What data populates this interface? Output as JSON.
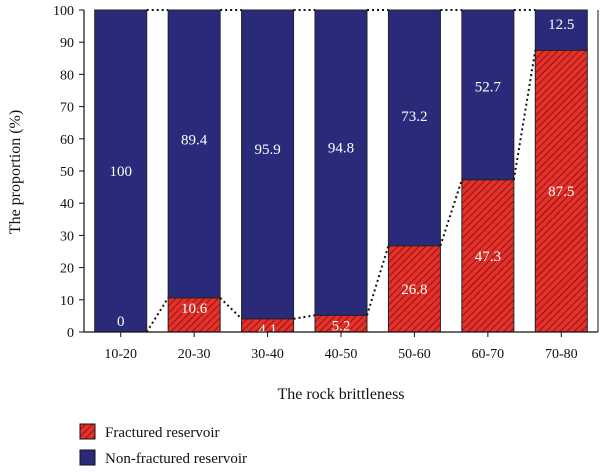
{
  "chart_data": {
    "type": "bar",
    "stacked": true,
    "categories": [
      "10-20",
      "20-30",
      "30-40",
      "40-50",
      "50-60",
      "60-70",
      "70-80"
    ],
    "series": [
      {
        "name": "Fractured reservoir",
        "values": [
          0,
          10.6,
          4.1,
          5.2,
          26.8,
          47.3,
          87.5
        ],
        "color": "#e8302a",
        "pattern": "hatch"
      },
      {
        "name": "Non-fractured reservoir",
        "values": [
          100,
          89.4,
          95.9,
          94.8,
          73.2,
          52.7,
          12.5
        ],
        "color": "#2a2a7a"
      }
    ],
    "data_labels": {
      "fractured": [
        "0",
        "10.6",
        "4.1",
        "5.2",
        "26.8",
        "47.3",
        "87.5"
      ],
      "non_fractured": [
        "100",
        "89.4",
        "95.9",
        "94.8",
        "73.2",
        "52.7",
        "12.5"
      ]
    },
    "connector_line": "dotted",
    "xlabel": "The rock brittleness",
    "ylabel": "The proportion (%)",
    "ylim": [
      0,
      100
    ],
    "yticks": [
      "0",
      "10",
      "20",
      "30",
      "40",
      "50",
      "60",
      "70",
      "80",
      "90",
      "100"
    ],
    "grid": false,
    "legend_position": "bottom-left"
  }
}
